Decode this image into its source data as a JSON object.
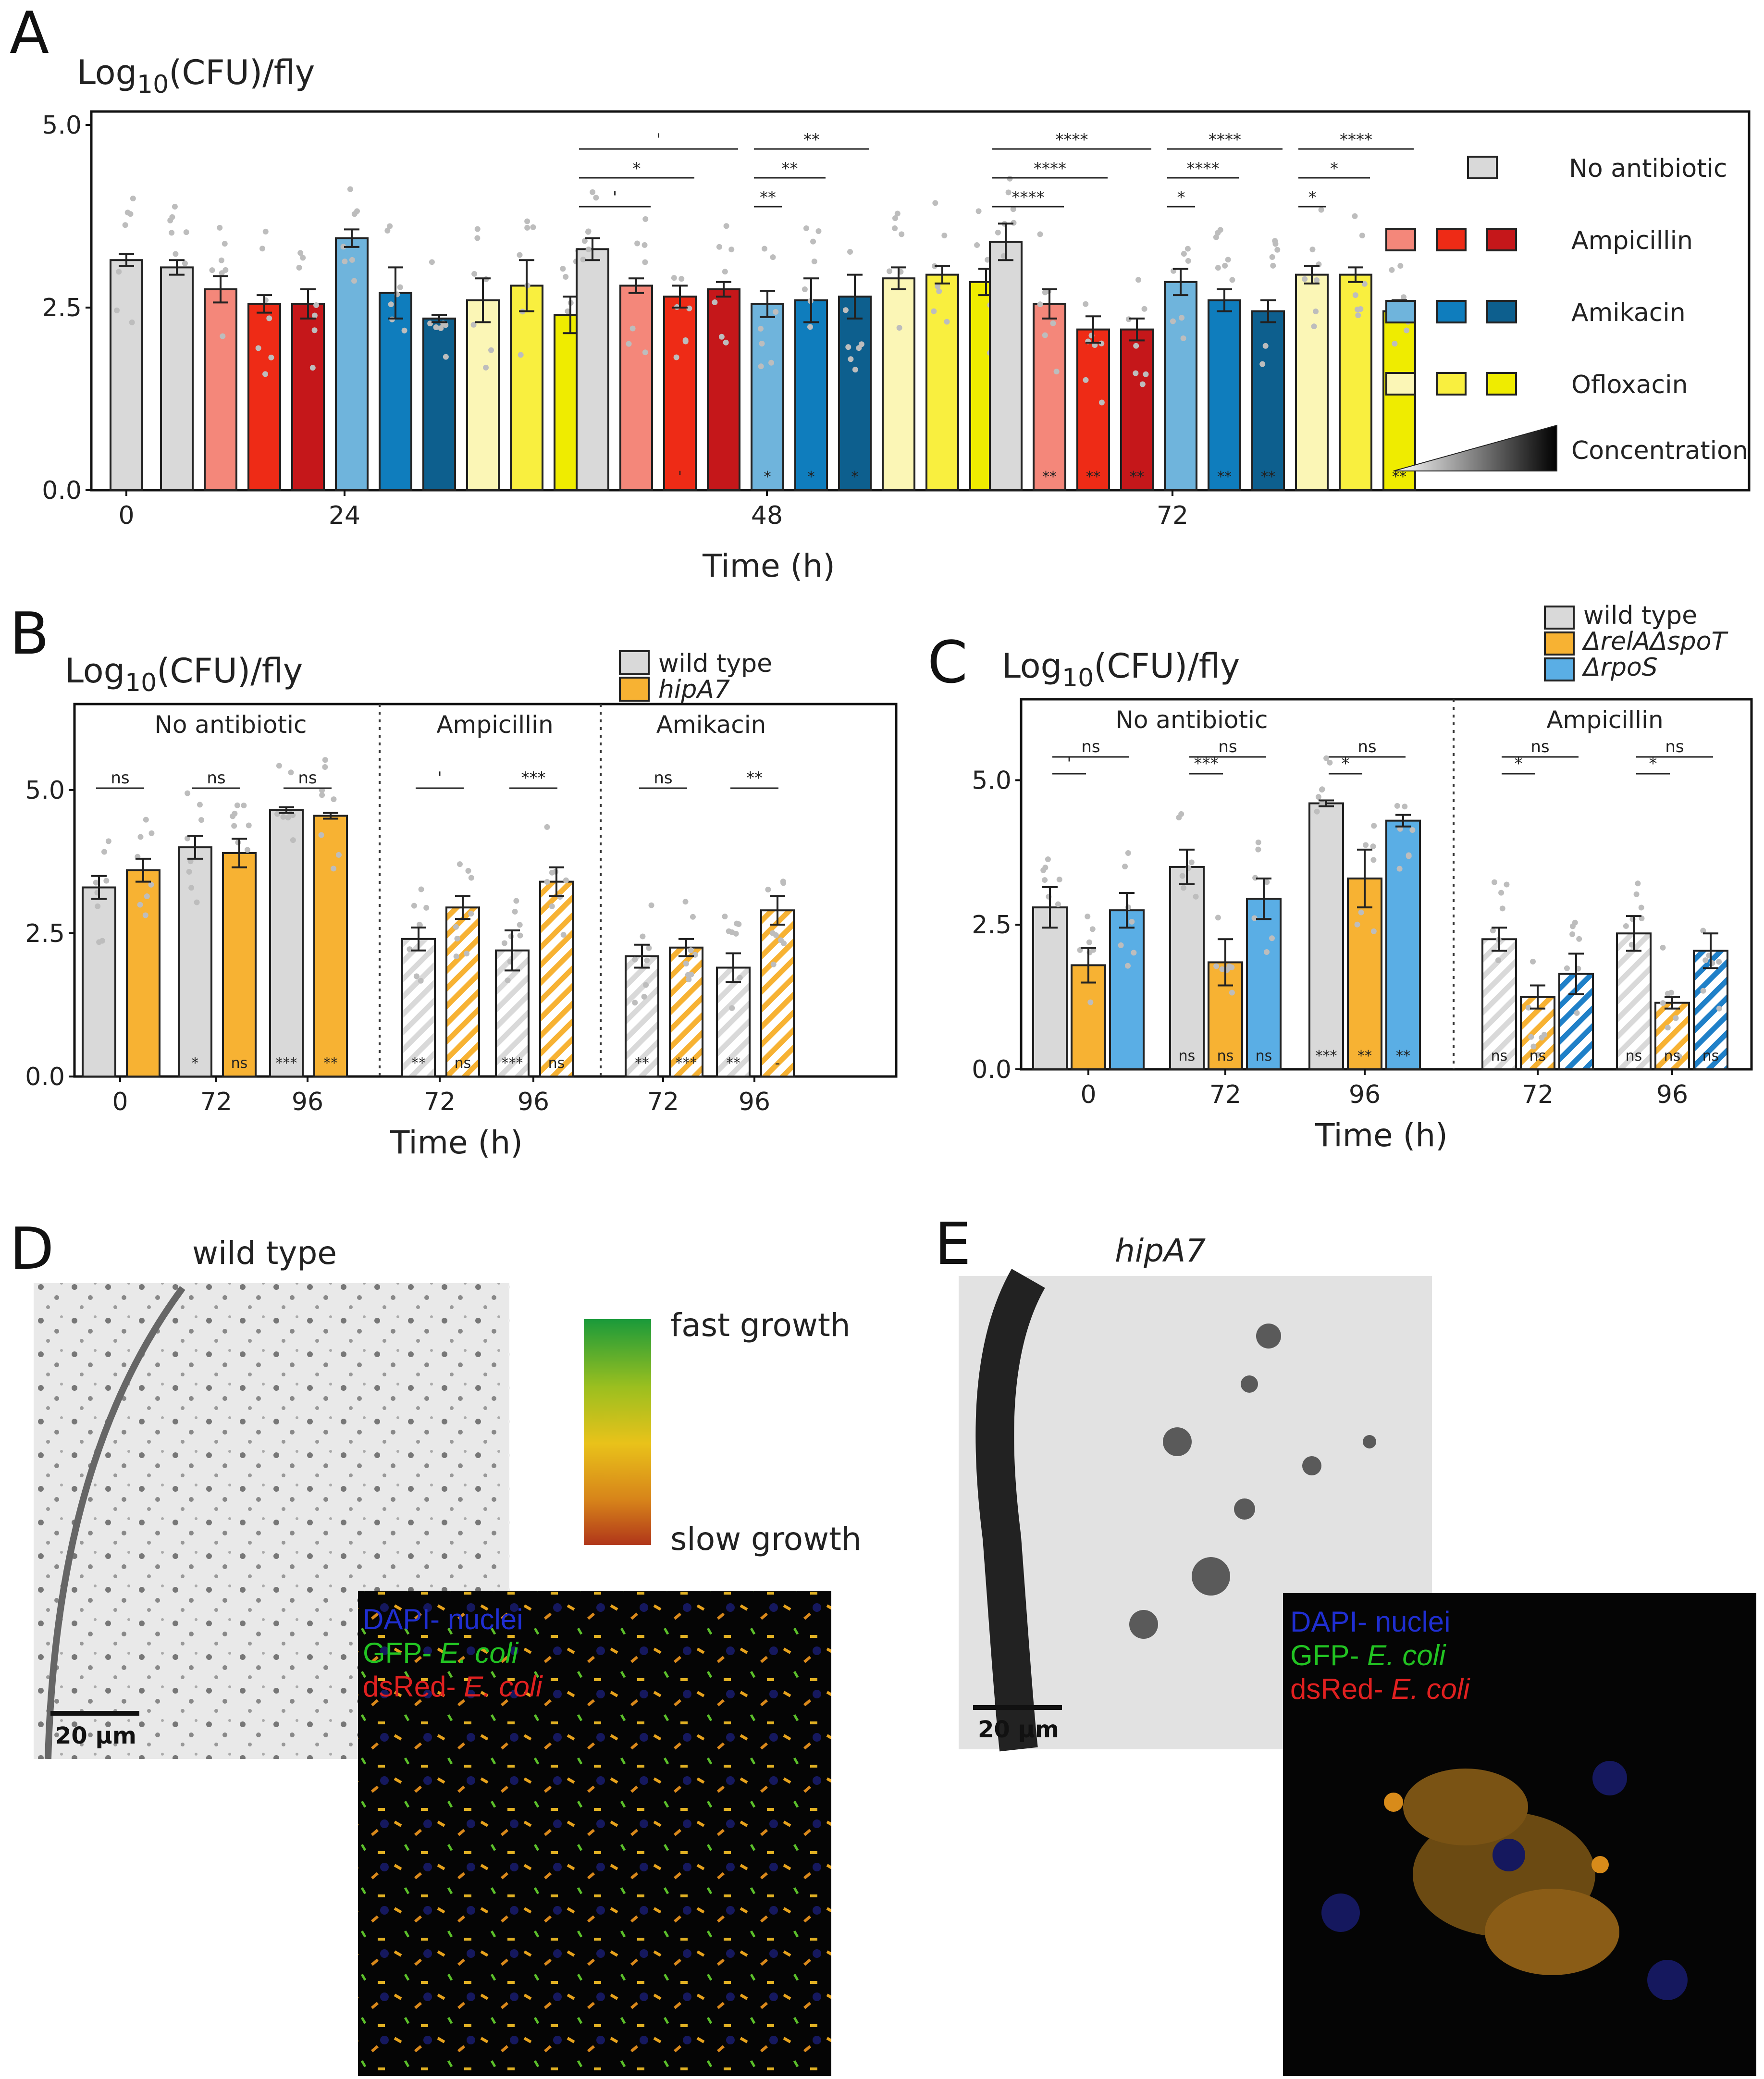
{
  "panels": {
    "A": {
      "label": "A"
    },
    "B": {
      "label": "B"
    },
    "C": {
      "label": "C"
    },
    "D": {
      "label": "D",
      "title": "wild type"
    },
    "E": {
      "label": "E",
      "title": "hipA7"
    }
  },
  "colors": {
    "grey": "#d9d9d9",
    "amp": [
      "#f4877a",
      "#ee2b16",
      "#c5171a"
    ],
    "amk": [
      "#6fb4dc",
      "#0f7dbd",
      "#0d5f8e"
    ],
    "oflx": [
      "#fbf6b6",
      "#f9ef3f",
      "#efec00"
    ],
    "orange": "#f7b233",
    "blue": "#5aaee5",
    "dot": "#bdbdbd"
  },
  "chart_data": [
    {
      "panel": "A",
      "type": "bar",
      "ylabel": "Log10(CFU)/fly",
      "ylabel_main": "Log",
      "ylabel_sub": "10",
      "ylabel_tail": "(CFU)/fly",
      "xlabel": "Time (h)",
      "ylim": [
        0,
        5.3
      ],
      "yticks": [
        "0.0",
        "2.5",
        "5.0"
      ],
      "xticks": [
        "0",
        "24",
        "48",
        "72"
      ],
      "legend": {
        "items": [
          "No antibiotic",
          "Ampicillin",
          "Amikacin",
          "Ofloxacin"
        ],
        "concentration_label": "Concentration"
      },
      "groups": [
        {
          "time": "0",
          "bars": [
            {
              "series": "No antibiotic",
              "value": 3.15,
              "err": 0.08
            }
          ]
        },
        {
          "time": "24",
          "bars": [
            {
              "series": "No antibiotic",
              "value": 3.05,
              "err": 0.1
            },
            {
              "series": "Ampicillin 1",
              "value": 2.75,
              "err": 0.18
            },
            {
              "series": "Ampicillin 2",
              "value": 2.55,
              "err": 0.12
            },
            {
              "series": "Ampicillin 3",
              "value": 2.55,
              "err": 0.2
            },
            {
              "series": "Amikacin 1",
              "value": 3.45,
              "err": 0.12
            },
            {
              "series": "Amikacin 2",
              "value": 2.7,
              "err": 0.35
            },
            {
              "series": "Amikacin 3",
              "value": 2.35,
              "err": 0.05
            },
            {
              "series": "Ofloxacin 1",
              "value": 2.6,
              "err": 0.3
            },
            {
              "series": "Ofloxacin 2",
              "value": 2.8,
              "err": 0.35
            },
            {
              "series": "Ofloxacin 3",
              "value": 2.4,
              "err": 0.25
            }
          ]
        },
        {
          "time": "48",
          "bars": [
            {
              "series": "No antibiotic",
              "value": 3.3,
              "err": 0.15
            },
            {
              "series": "Ampicillin 1",
              "value": 2.8,
              "err": 0.1
            },
            {
              "series": "Ampicillin 2",
              "value": 2.65,
              "err": 0.15
            },
            {
              "series": "Ampicillin 3",
              "value": 2.75,
              "err": 0.1
            },
            {
              "series": "Amikacin 1",
              "value": 2.55,
              "err": 0.18
            },
            {
              "series": "Amikacin 2",
              "value": 2.6,
              "err": 0.3
            },
            {
              "series": "Amikacin 3",
              "value": 2.65,
              "err": 0.3
            },
            {
              "series": "Ofloxacin 1",
              "value": 2.9,
              "err": 0.15
            },
            {
              "series": "Ofloxacin 2",
              "value": 2.95,
              "err": 0.12
            },
            {
              "series": "Ofloxacin 3",
              "value": 2.85,
              "err": 0.18
            }
          ]
        },
        {
          "time": "72",
          "bars": [
            {
              "series": "No antibiotic",
              "value": 3.4,
              "err": 0.25
            },
            {
              "series": "Ampicillin 1",
              "value": 2.55,
              "err": 0.2
            },
            {
              "series": "Ampicillin 2",
              "value": 2.2,
              "err": 0.18
            },
            {
              "series": "Ampicillin 3",
              "value": 2.2,
              "err": 0.15
            },
            {
              "series": "Amikacin 1",
              "value": 2.85,
              "err": 0.18
            },
            {
              "series": "Amikacin 2",
              "value": 2.6,
              "err": 0.15
            },
            {
              "series": "Amikacin 3",
              "value": 2.45,
              "err": 0.15
            },
            {
              "series": "Ofloxacin 1",
              "value": 2.95,
              "err": 0.12
            },
            {
              "series": "Ofloxacin 2",
              "value": 2.95,
              "err": 0.1
            },
            {
              "series": "Ofloxacin 3",
              "value": 2.45,
              "err": 0.15
            }
          ]
        }
      ],
      "brackets": [
        {
          "group": 2,
          "from": 0,
          "to": 3,
          "level": 2,
          "text": "'"
        },
        {
          "group": 2,
          "from": 0,
          "to": 2,
          "level": 1,
          "text": "*"
        },
        {
          "group": 2,
          "from": 0,
          "to": 1,
          "level": 0,
          "text": "'"
        },
        {
          "group": 2,
          "from": 4,
          "to": 6,
          "level": 2,
          "text": "**"
        },
        {
          "group": 2,
          "from": 4,
          "to": 5,
          "level": 1,
          "text": "**"
        },
        {
          "group": 2,
          "from": 4,
          "to": 4,
          "level": 0,
          "text": "**"
        },
        {
          "group": 3,
          "from": 0,
          "to": 3,
          "level": 2,
          "text": "****"
        },
        {
          "group": 3,
          "from": 0,
          "to": 2,
          "level": 1,
          "text": "****"
        },
        {
          "group": 3,
          "from": 0,
          "to": 1,
          "level": 0,
          "text": "****"
        },
        {
          "group": 3,
          "from": 4,
          "to": 6,
          "level": 2,
          "text": "****"
        },
        {
          "group": 3,
          "from": 4,
          "to": 5,
          "level": 1,
          "text": "****"
        },
        {
          "group": 3,
          "from": 4,
          "to": 4,
          "level": 0,
          "text": "*"
        },
        {
          "group": 3,
          "from": 7,
          "to": 9,
          "level": 2,
          "text": "****"
        },
        {
          "group": 3,
          "from": 7,
          "to": 8,
          "level": 1,
          "text": "*"
        },
        {
          "group": 3,
          "from": 7,
          "to": 7,
          "level": 0,
          "text": "*"
        }
      ],
      "bar_annotations": [
        {
          "group": 2,
          "bar": 2,
          "text": "'"
        },
        {
          "group": 2,
          "bar": 4,
          "text": "*"
        },
        {
          "group": 2,
          "bar": 5,
          "text": "*"
        },
        {
          "group": 2,
          "bar": 6,
          "text": "*"
        },
        {
          "group": 3,
          "bar": 1,
          "text": "**"
        },
        {
          "group": 3,
          "bar": 2,
          "text": "**"
        },
        {
          "group": 3,
          "bar": 3,
          "text": "**"
        },
        {
          "group": 3,
          "bar": 5,
          "text": "**"
        },
        {
          "group": 3,
          "bar": 6,
          "text": "**"
        },
        {
          "group": 3,
          "bar": 9,
          "text": "**"
        }
      ]
    },
    {
      "panel": "B",
      "type": "bar",
      "ylabel": "Log10(CFU)/fly",
      "ylabel_main": "Log",
      "ylabel_sub": "10",
      "ylabel_tail": "(CFU)/fly",
      "xlabel": "Time (h)",
      "ylim": [
        0,
        6.5
      ],
      "yticks": [
        "0.0",
        "2.5",
        "5.0"
      ],
      "legend": [
        "wild type",
        "hipA7"
      ],
      "sections": [
        "No antibiotic",
        "Ampicillin",
        "Amikacin"
      ],
      "groups": [
        {
          "time": "0",
          "section": 0,
          "values": [
            3.3,
            3.6
          ],
          "err": [
            0.2,
            0.2
          ]
        },
        {
          "time": "72",
          "section": 0,
          "values": [
            4.0,
            3.9
          ],
          "err": [
            0.2,
            0.25
          ]
        },
        {
          "time": "96",
          "section": 0,
          "values": [
            4.65,
            4.55
          ],
          "err": [
            0.05,
            0.05
          ]
        },
        {
          "time": "72",
          "section": 1,
          "values": [
            2.4,
            2.95
          ],
          "err": [
            0.2,
            0.2
          ]
        },
        {
          "time": "96",
          "section": 1,
          "values": [
            2.2,
            3.4
          ],
          "err": [
            0.35,
            0.25
          ]
        },
        {
          "time": "72",
          "section": 2,
          "values": [
            2.1,
            2.25
          ],
          "err": [
            0.2,
            0.15
          ]
        },
        {
          "time": "96",
          "section": 2,
          "values": [
            1.9,
            2.9
          ],
          "err": [
            0.25,
            0.25
          ]
        }
      ],
      "top_sig": [
        "ns",
        "ns",
        "ns",
        "'",
        "***",
        "ns",
        "**"
      ],
      "bar_sig": [
        [
          "",
          ""
        ],
        [
          "*",
          "ns"
        ],
        [
          "***",
          "**"
        ],
        [
          "**",
          "ns"
        ],
        [
          "***",
          "ns"
        ],
        [
          "**",
          "***"
        ],
        [
          "**",
          "-"
        ]
      ]
    },
    {
      "panel": "C",
      "type": "bar",
      "ylabel": "Log10(CFU)/fly",
      "ylabel_main": "Log",
      "ylabel_sub": "10",
      "ylabel_tail": "(CFU)/fly",
      "xlabel": "Time (h)",
      "ylim": [
        0,
        6.4
      ],
      "yticks": [
        "0.0",
        "2.5",
        "5.0"
      ],
      "legend": [
        "wild type",
        "ΔrelAΔspoT",
        "ΔrpoS"
      ],
      "sections": [
        "No antibiotic",
        "Ampicillin"
      ],
      "groups": [
        {
          "time": "0",
          "section": 0,
          "values": [
            2.8,
            1.8,
            2.75
          ],
          "err": [
            0.35,
            0.3,
            0.3
          ]
        },
        {
          "time": "72",
          "section": 0,
          "values": [
            3.5,
            1.85,
            2.95
          ],
          "err": [
            0.3,
            0.4,
            0.35
          ]
        },
        {
          "time": "96",
          "section": 0,
          "values": [
            4.6,
            3.3,
            4.3
          ],
          "err": [
            0.05,
            0.5,
            0.1
          ]
        },
        {
          "time": "72",
          "section": 1,
          "values": [
            2.25,
            1.25,
            1.65
          ],
          "err": [
            0.2,
            0.2,
            0.35
          ]
        },
        {
          "time": "96",
          "section": 1,
          "values": [
            2.35,
            1.15,
            2.05
          ],
          "err": [
            0.3,
            0.1,
            0.3
          ]
        }
      ],
      "top_sig": [
        [
          "'",
          "ns"
        ],
        [
          "***",
          "ns"
        ],
        [
          "*",
          "ns"
        ],
        [
          "*",
          "ns"
        ],
        [
          "*",
          "ns"
        ]
      ],
      "bar_sig": [
        [
          "",
          "",
          ""
        ],
        [
          "ns",
          "ns",
          "ns"
        ],
        [
          "***",
          "**",
          "**"
        ],
        [
          "ns",
          "ns",
          ""
        ],
        [
          "ns",
          "ns",
          "ns"
        ]
      ]
    }
  ],
  "microscopy": {
    "colorbar": {
      "top": "fast growth",
      "bottom": "slow growth"
    },
    "scale_bar": "20 µm",
    "channels": [
      {
        "prefix": "DAPI- ",
        "name": "nuclei",
        "italic": false
      },
      {
        "prefix": "GFP- ",
        "name": "E. coli",
        "italic": true
      },
      {
        "prefix": "dsRed- ",
        "name": "E. coli",
        "italic": true
      }
    ]
  }
}
